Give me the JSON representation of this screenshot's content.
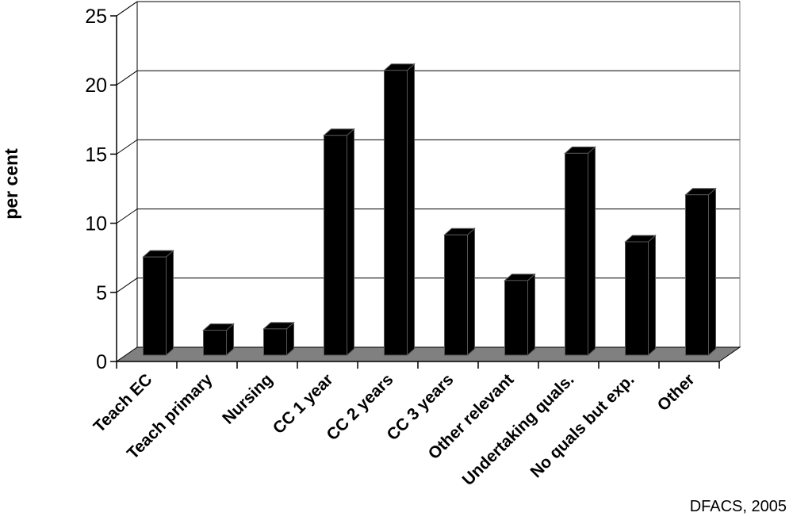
{
  "chart_data": {
    "type": "bar",
    "title": "",
    "xlabel": "",
    "ylabel": "per cent",
    "ylim": [
      0,
      25
    ],
    "yticks": [
      0,
      5,
      10,
      15,
      20,
      25
    ],
    "grid": true,
    "legend": "none",
    "style": "3d",
    "categories": [
      "Teach EC",
      "Teach primary",
      "Nursing",
      "CC 1 year",
      "CC 2 years",
      "CC 3 years",
      "Other relevant",
      "Undertaking quals.",
      "No quals but exp.",
      "Other"
    ],
    "series": [
      {
        "values": [
          7.1,
          1.8,
          1.9,
          15.9,
          20.6,
          8.7,
          5.4,
          14.6,
          8.2,
          11.6
        ]
      }
    ],
    "colors": {
      "bar": "#000000",
      "floor": "#808080",
      "grid": "#000000"
    }
  },
  "source_note": "DFACS, 2005"
}
